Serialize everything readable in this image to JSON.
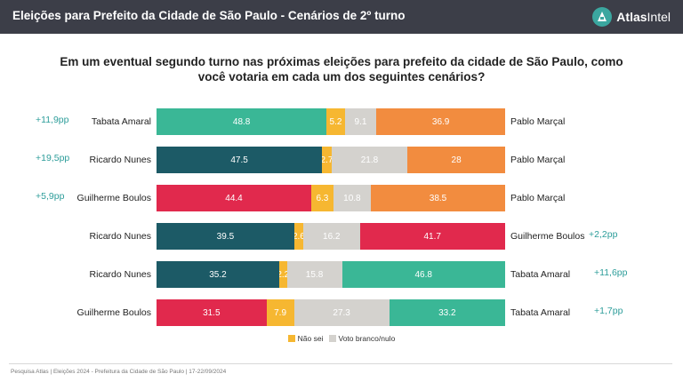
{
  "header": {
    "title": "Eleições para Prefeito da Cidade de São Paulo - Cenários de 2º turno",
    "logo_bold": "Atlas",
    "logo_light": "Intel"
  },
  "question": "Em um eventual segundo turno nas próximas eleições para prefeito da cidade de São Paulo, como você votaria em cada um dos seguintes cenários?",
  "colors": {
    "Tabata Amaral": "#3ab796",
    "Ricardo Nunes": "#1c5a66",
    "Guilherme Boulos": "#e1294d",
    "Pablo Marçal": "#f28c3f",
    "nao_sei": "#f6b731",
    "voto_branco": "#d4d2ce",
    "change_text": "#2d9d9a"
  },
  "chart_data": {
    "type": "bar",
    "orientation": "horizontal-stacked",
    "series_order": [
      "left_candidate",
      "Não sei",
      "Voto branco/nulo",
      "right_candidate"
    ],
    "rows": [
      {
        "left": "Tabata Amaral",
        "left_value": 48.8,
        "nao_sei": 5.2,
        "branco": 9.1,
        "right_value": 36.9,
        "right": "Pablo Marçal",
        "change": "+11,9pp",
        "change_side": "left"
      },
      {
        "left": "Ricardo Nunes",
        "left_value": 47.5,
        "nao_sei": 2.7,
        "branco": 21.8,
        "right_value": 28,
        "right": "Pablo Marçal",
        "change": "+19,5pp",
        "change_side": "left"
      },
      {
        "left": "Guilherme Boulos",
        "left_value": 44.4,
        "nao_sei": 6.3,
        "branco": 10.8,
        "right_value": 38.5,
        "right": "Pablo Marçal",
        "change": "+5,9pp",
        "change_side": "left"
      },
      {
        "left": "Ricardo Nunes",
        "left_value": 39.5,
        "nao_sei": 2.6,
        "branco": 16.2,
        "right_value": 41.7,
        "right": "Guilherme Boulos",
        "change": "+2,2pp",
        "change_side": "right"
      },
      {
        "left": "Ricardo Nunes",
        "left_value": 35.2,
        "nao_sei": 2.2,
        "branco": 15.8,
        "right_value": 46.8,
        "right": "Tabata Amaral",
        "change": "+11,6pp",
        "change_side": "right"
      },
      {
        "left": "Guilherme Boulos",
        "left_value": 31.5,
        "nao_sei": 7.9,
        "branco": 27.3,
        "right_value": 33.2,
        "right": "Tabata Amaral",
        "change": "+1,7pp",
        "change_side": "right"
      }
    ],
    "legend": [
      "Não sei",
      "Voto branco/nulo"
    ],
    "legend_position": "bottom-center",
    "xlim": [
      0,
      100
    ],
    "grid": false
  },
  "footer": "Pesquisa Atlas  |  Eleições 2024 - Prefeitura da Cidade de São Paulo  |  17-22/09/2024"
}
